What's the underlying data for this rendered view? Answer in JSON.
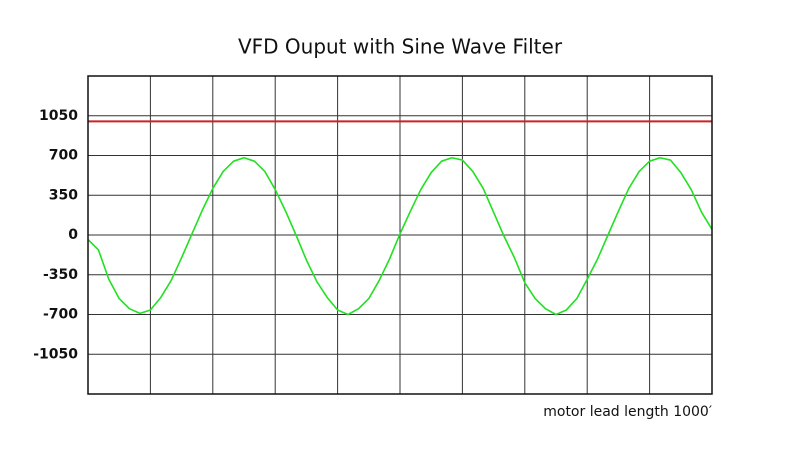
{
  "chart_data": {
    "type": "line",
    "title": "VFD Ouput with Sine Wave Filter",
    "annotation": "motor lead length 1000′",
    "series": [
      {
        "color": "#22e022",
        "values": [
          -40,
          -130,
          -390,
          -560,
          -650,
          -690,
          -660,
          -550,
          -400,
          -200,
          10,
          220,
          410,
          560,
          650,
          680,
          650,
          560,
          400,
          210,
          0,
          -220,
          -410,
          -550,
          -660,
          -700,
          -650,
          -560,
          -400,
          -210,
          10,
          210,
          400,
          550,
          650,
          680,
          660,
          560,
          410,
          200,
          -10,
          -200,
          -420,
          -560,
          -650,
          -700,
          -660,
          -560,
          -390,
          -210,
          0,
          210,
          410,
          560,
          650,
          680,
          660,
          550,
          400,
          200,
          50
        ]
      }
    ],
    "reference_line": {
      "value": 1000,
      "color": "#cc2222"
    },
    "ylim": [
      -1400,
      1400
    ],
    "yticks": [
      -1050,
      -700,
      -350,
      0,
      350,
      700,
      1050
    ],
    "x_grid_divisions": 10,
    "grid": true
  }
}
